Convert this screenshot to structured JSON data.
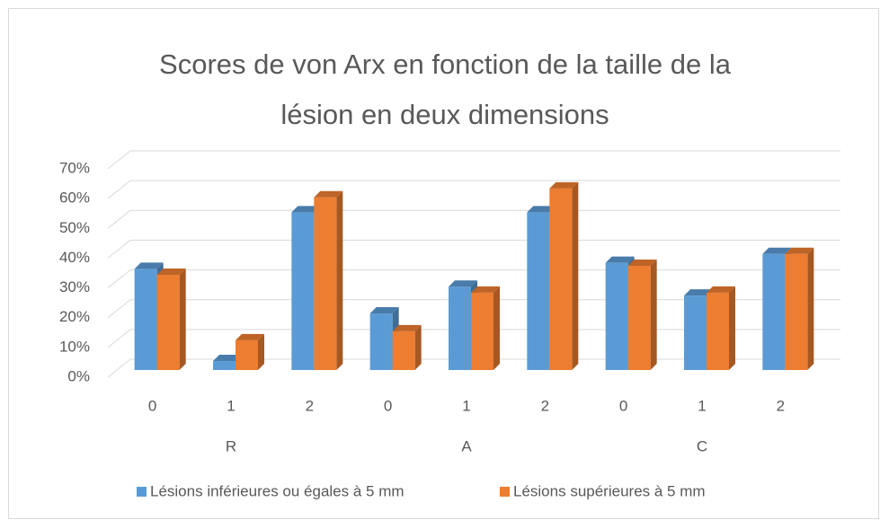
{
  "chart_data": {
    "type": "bar3d",
    "title": "Scores de von Arx en fonction de la taille de la lésion en deux dimensions",
    "categories": [
      "0",
      "1",
      "2",
      "0",
      "1",
      "2",
      "0",
      "1",
      "2"
    ],
    "groups": [
      "R",
      "A",
      "C"
    ],
    "series": [
      {
        "name": "Lésions inférieures ou égales à 5 mm",
        "color": "#5b9bd5",
        "values": [
          34,
          3,
          53,
          19,
          28,
          53,
          36,
          25,
          39
        ]
      },
      {
        "name": "Lésions supérieures à 5 mm",
        "color": "#ed7d31",
        "values": [
          32,
          10,
          58,
          13,
          26,
          61,
          35,
          26,
          39
        ]
      }
    ],
    "ylim": [
      0,
      70
    ],
    "yticks": [
      {
        "value": 0,
        "label": "0%"
      },
      {
        "value": 10,
        "label": "10%"
      },
      {
        "value": 20,
        "label": "20%"
      },
      {
        "value": 30,
        "label": "30%"
      },
      {
        "value": 40,
        "label": "40%"
      },
      {
        "value": 50,
        "label": "50%"
      },
      {
        "value": 60,
        "label": "60%"
      },
      {
        "value": 70,
        "label": "70%"
      }
    ],
    "grid": true,
    "legend": "bottom"
  }
}
